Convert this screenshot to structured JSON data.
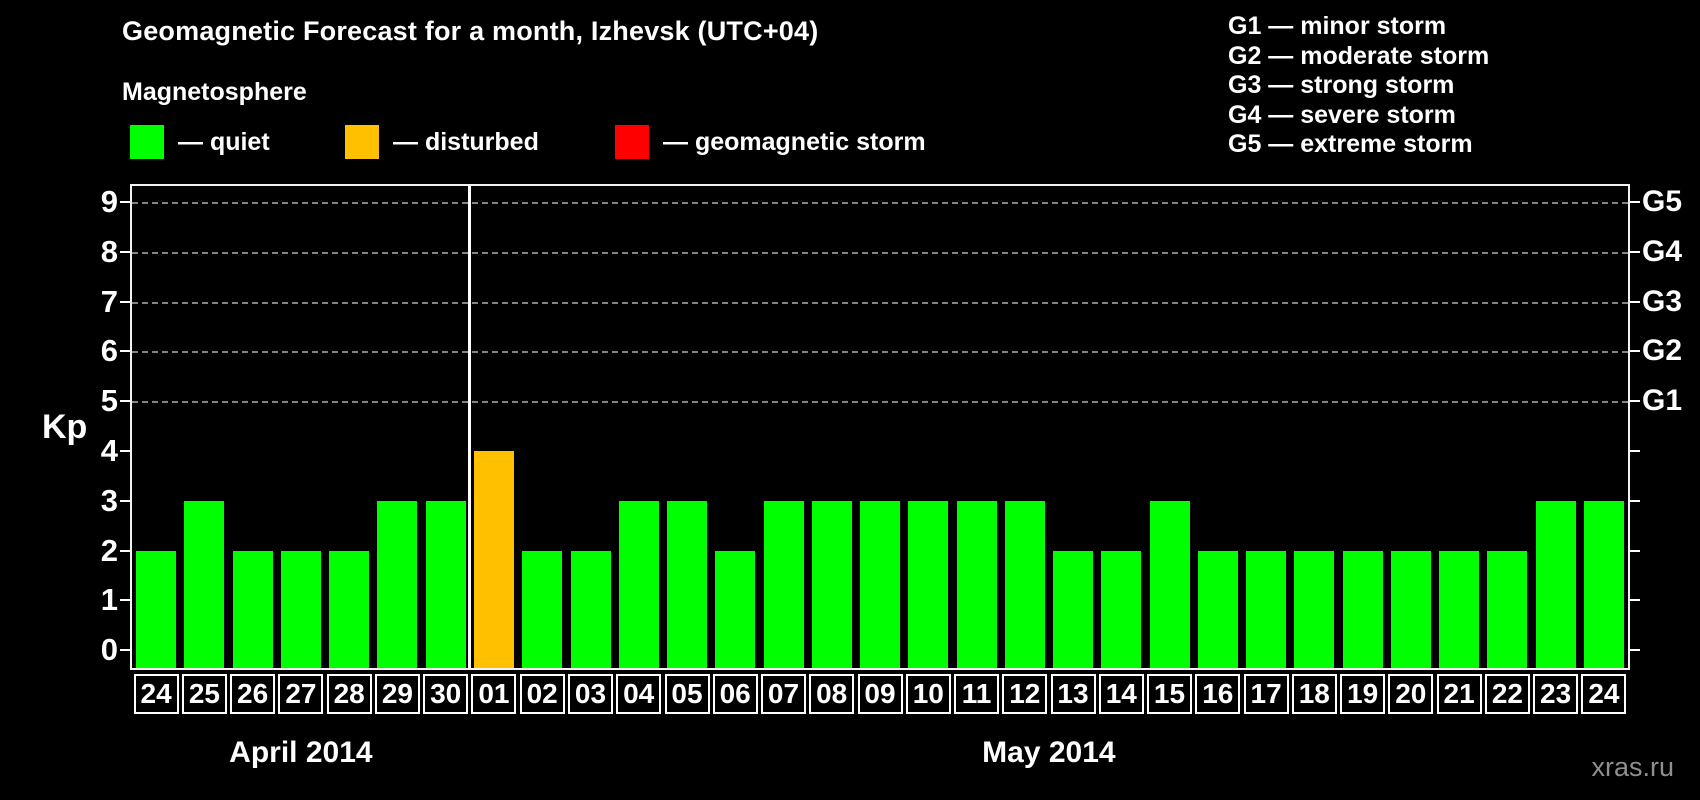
{
  "title": "Geomagnetic Forecast for a month, Izhevsk (UTC+04)",
  "subtitle": "Magnetosphere",
  "legend": {
    "items": [
      {
        "key": "quiet",
        "label": "— quiet",
        "color": "#00ff00",
        "x": 130
      },
      {
        "key": "disturbed",
        "label": "— disturbed",
        "color": "#ffc000",
        "x": 345
      },
      {
        "key": "storm",
        "label": "— geomagnetic storm",
        "color": "#ff0000",
        "x": 615
      }
    ]
  },
  "storm_scale": [
    "G1 — minor storm",
    "G2 — moderate storm",
    "G3 — strong storm",
    "G4 — severe storm",
    "G5 — extreme storm"
  ],
  "watermark": "xras.ru",
  "chart_data": {
    "type": "bar",
    "ylabel": "Kp",
    "ylim": [
      0,
      9
    ],
    "yticks": [
      0,
      1,
      2,
      3,
      4,
      5,
      6,
      7,
      8,
      9
    ],
    "grid_levels": [
      5,
      6,
      7,
      8,
      9
    ],
    "grid_style": "dashed",
    "right_axis": [
      {
        "kp": 5,
        "label": "G1"
      },
      {
        "kp": 6,
        "label": "G2"
      },
      {
        "kp": 7,
        "label": "G3"
      },
      {
        "kp": 8,
        "label": "G4"
      },
      {
        "kp": 9,
        "label": "G5"
      }
    ],
    "categories": [
      "24",
      "25",
      "26",
      "27",
      "28",
      "29",
      "30",
      "01",
      "02",
      "03",
      "04",
      "05",
      "06",
      "07",
      "08",
      "09",
      "10",
      "11",
      "12",
      "13",
      "14",
      "15",
      "16",
      "17",
      "18",
      "19",
      "20",
      "21",
      "22",
      "23",
      "24"
    ],
    "values": [
      2,
      3,
      2,
      2,
      2,
      3,
      3,
      4,
      2,
      2,
      3,
      3,
      2,
      3,
      3,
      3,
      3,
      3,
      3,
      2,
      2,
      3,
      2,
      2,
      2,
      2,
      2,
      2,
      2,
      3,
      3
    ],
    "statuses": [
      "quiet",
      "quiet",
      "quiet",
      "quiet",
      "quiet",
      "quiet",
      "quiet",
      "disturbed",
      "quiet",
      "quiet",
      "quiet",
      "quiet",
      "quiet",
      "quiet",
      "quiet",
      "quiet",
      "quiet",
      "quiet",
      "quiet",
      "quiet",
      "quiet",
      "quiet",
      "quiet",
      "quiet",
      "quiet",
      "quiet",
      "quiet",
      "quiet",
      "quiet",
      "quiet",
      "quiet"
    ],
    "status_colors": {
      "quiet": "#00ff00",
      "disturbed": "#ffc000",
      "storm": "#ff0000"
    },
    "months": [
      {
        "label": "April 2014",
        "start_index": 0,
        "days": 7
      },
      {
        "label": "May 2014",
        "start_index": 7,
        "days": 24
      }
    ]
  }
}
